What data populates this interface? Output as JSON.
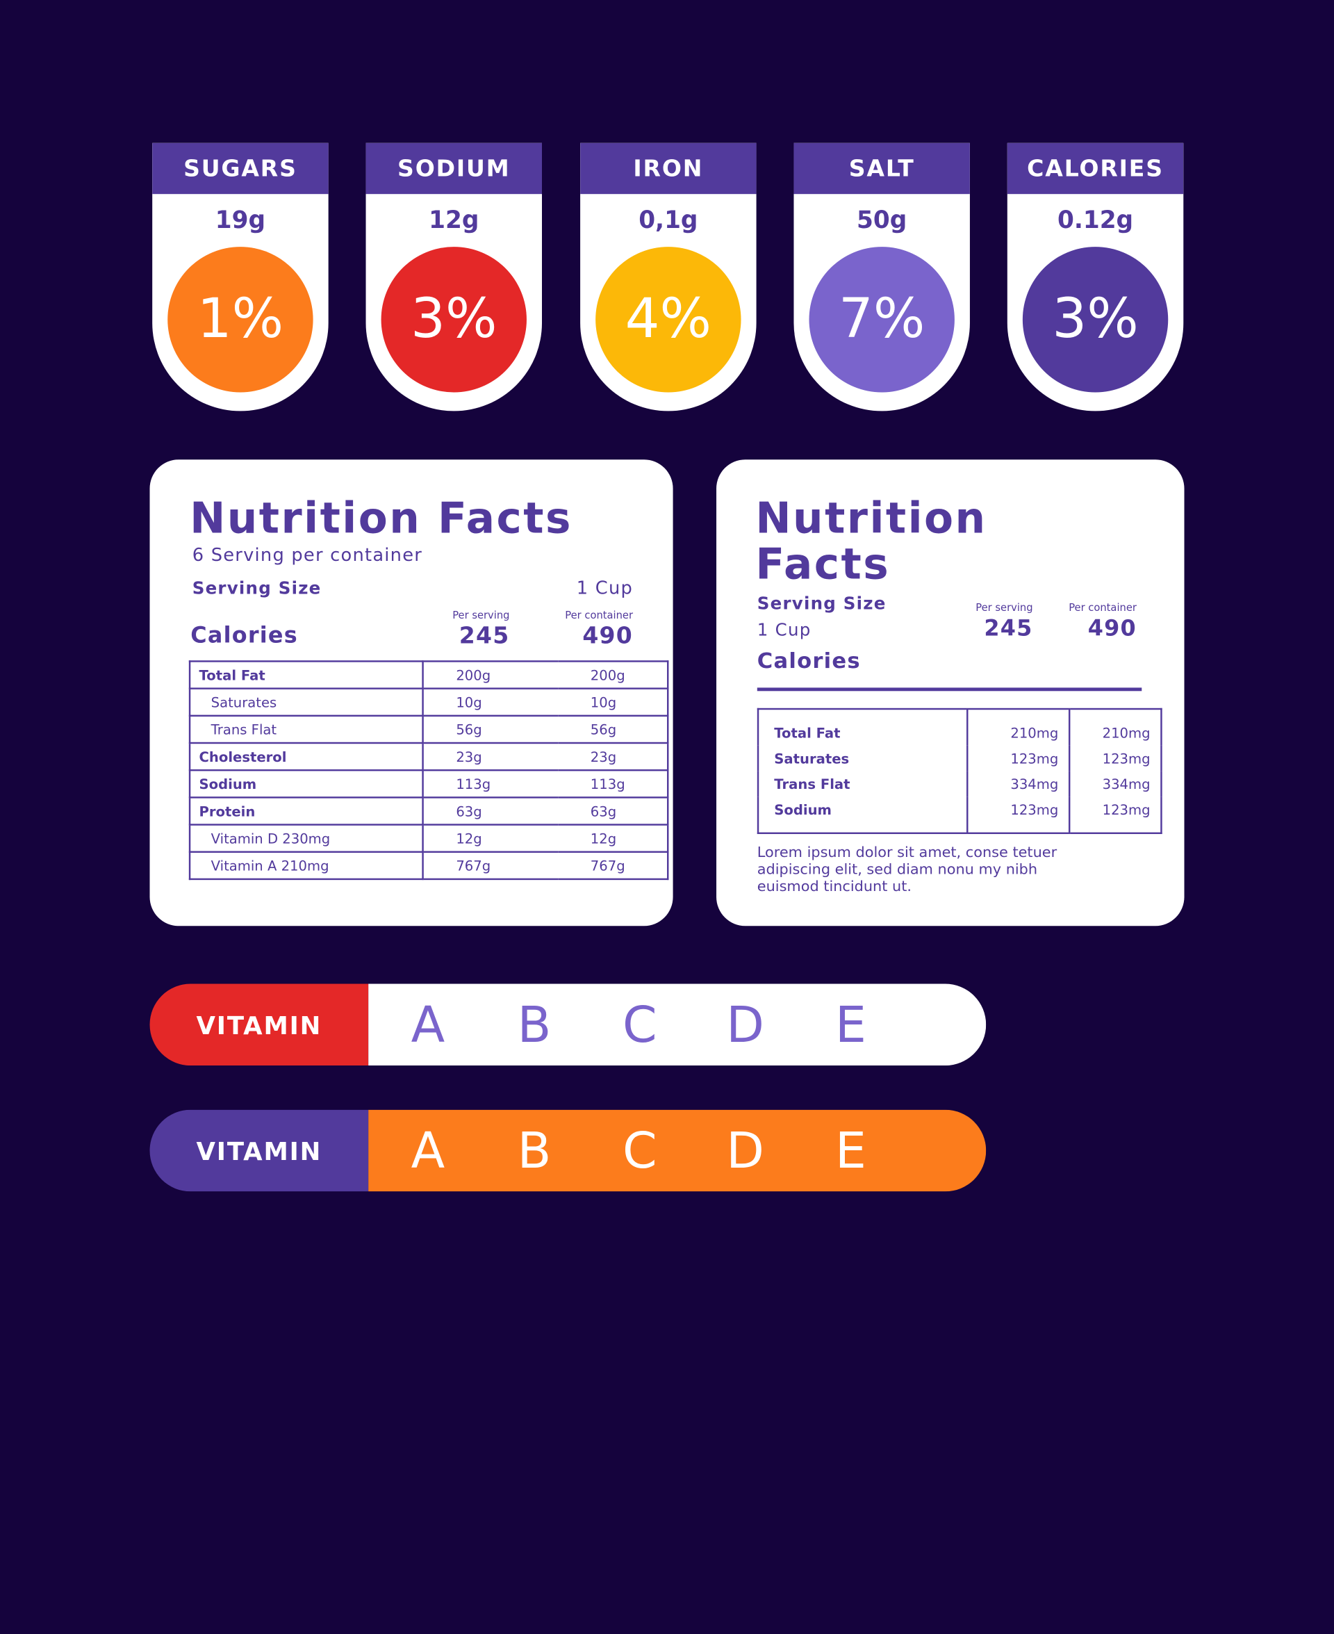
{
  "badges": [
    {
      "label": "SUGARS",
      "amount": "19g",
      "percent": "1%",
      "color": "#fc7c1c"
    },
    {
      "label": "SODIUM",
      "amount": "12g",
      "percent": "3%",
      "color": "#e42828"
    },
    {
      "label": "IRON",
      "amount": "0,1g",
      "percent": "4%",
      "color": "#fcb808"
    },
    {
      "label": "SALT",
      "amount": "50g",
      "percent": "7%",
      "color": "#7a64cc"
    },
    {
      "label": "CALORIES",
      "amount": "0.12g",
      "percent": "3%",
      "color": "#523a9c"
    }
  ],
  "card1": {
    "title": "Nutrition Facts",
    "servings": "6 Serving per container",
    "serving_size_label": "Serving Size",
    "serving_size_value": "1 Cup",
    "per_serving_label": "Per serving",
    "per_container_label": "Per container",
    "calories_label": "Calories",
    "calories_serving": "245",
    "calories_container": "490",
    "rows": [
      {
        "name": "Total Fat",
        "serving": "200g",
        "container": "200g"
      },
      {
        "name": "Saturates",
        "serving": "10g",
        "container": "10g"
      },
      {
        "name": "Trans Flat",
        "serving": "56g",
        "container": "56g"
      },
      {
        "name": "Cholesterol",
        "serving": "23g",
        "container": "23g"
      },
      {
        "name": "Sodium",
        "serving": "113g",
        "container": "113g"
      },
      {
        "name": "Protein",
        "serving": "63g",
        "container": "63g"
      },
      {
        "name": "Vitamin D 230mg",
        "serving": "12g",
        "container": "12g"
      },
      {
        "name": "Vitamin A 210mg",
        "serving": "767g",
        "container": "767g"
      }
    ]
  },
  "card2": {
    "title_line1": "Nutrition",
    "title_line2": "Facts",
    "serving_size_label": "Serving Size",
    "serving_size_value": "1 Cup",
    "calories_label": "Calories",
    "per_serving_label": "Per serving",
    "per_container_label": "Per container",
    "calories_serving": "245",
    "calories_container": "490",
    "rows": [
      {
        "name": "Total Fat",
        "serving": "210mg",
        "container": "210mg"
      },
      {
        "name": "Saturates",
        "serving": "123mg",
        "container": "123mg"
      },
      {
        "name": "Trans Flat",
        "serving": "334mg",
        "container": "334mg"
      },
      {
        "name": "Sodium",
        "serving": "123mg",
        "container": "123mg"
      }
    ],
    "note": "Lorem ipsum dolor sit amet, conse tetuer adipiscing elit, sed diam nonu my nibh euismod tincidunt ut."
  },
  "vitamin_bars": [
    {
      "label": "VITAMIN",
      "letters": [
        "A",
        "B",
        "C",
        "D",
        "E"
      ],
      "label_color": "#e42828",
      "body_color": "#ffffff",
      "letter_color": "#7a64cc"
    },
    {
      "label": "VITAMIN",
      "letters": [
        "A",
        "B",
        "C",
        "D",
        "E"
      ],
      "label_color": "#523a9c",
      "body_color": "#fc7c1c",
      "letter_color": "#ffffff"
    }
  ]
}
